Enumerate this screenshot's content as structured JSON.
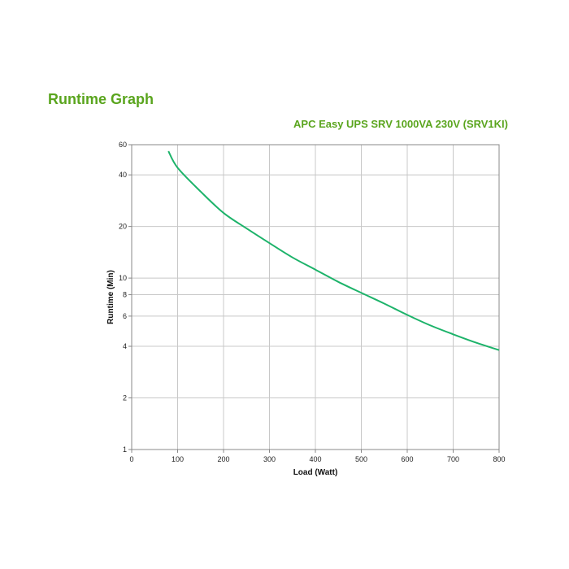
{
  "page": {
    "title": "Runtime Graph",
    "subtitle": "APC Easy UPS SRV 1000VA 230V (SRV1KI)"
  },
  "colors": {
    "accent": "#5aa51e",
    "curve": "#1db36a",
    "grid": "#c8c8c8",
    "axis": "#888888"
  },
  "chart_data": {
    "type": "line",
    "xlabel": "Load (Watt)",
    "ylabel": "Runtime (Min)",
    "xlim": [
      0,
      800
    ],
    "ylim": [
      1,
      60
    ],
    "yscale": "log",
    "grid": true,
    "x_ticks": [
      0,
      100,
      200,
      300,
      400,
      500,
      600,
      700,
      800
    ],
    "y_ticks": [
      1,
      2,
      4,
      6,
      8,
      10,
      20,
      40,
      60
    ],
    "series": [
      {
        "x": [
          80,
          100,
          150,
          200,
          250,
          300,
          350,
          400,
          450,
          500,
          550,
          600,
          650,
          700,
          750,
          800
        ],
        "y": [
          55,
          44,
          32,
          24,
          19.5,
          16,
          13.2,
          11.2,
          9.5,
          8.2,
          7.1,
          6.1,
          5.3,
          4.7,
          4.2,
          3.8
        ]
      }
    ]
  }
}
